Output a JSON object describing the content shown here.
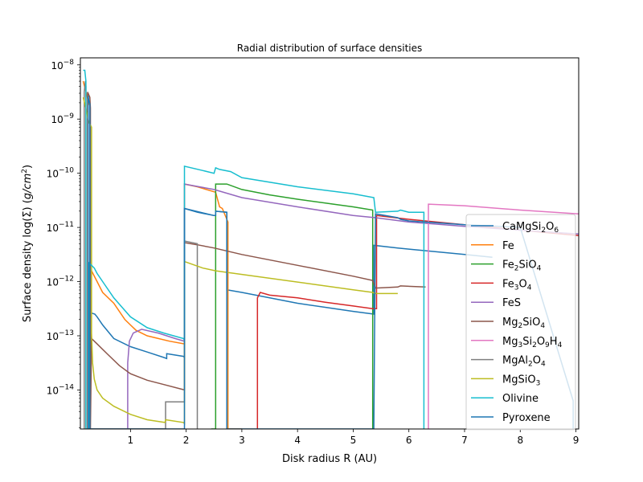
{
  "chart_data": {
    "type": "line",
    "title": "Radial distribution of surface densities",
    "xlabel": "Disk radius R (AU)",
    "ylabel_parts": [
      "Surface density log(Σ) (",
      "g",
      "/",
      "cm",
      "2",
      ")"
    ],
    "xlim": [
      0.1,
      9.05
    ],
    "ylim_log10": [
      -14.72,
      -7.87
    ],
    "yscale": "log",
    "grid": false,
    "legend_position": "lower right",
    "x_ticks": [
      1,
      2,
      3,
      4,
      5,
      6,
      7,
      8,
      9
    ],
    "x_tick_labels": [
      "1",
      "2",
      "3",
      "4",
      "5",
      "6",
      "7",
      "8",
      "9"
    ],
    "y_ticks_log10": [
      -14,
      -13,
      -12,
      -11,
      -10,
      -9,
      -8
    ],
    "y_tick_labels": [
      [
        "10",
        "−14"
      ],
      [
        "10",
        "−13"
      ],
      [
        "10",
        "−12"
      ],
      [
        "10",
        "−11"
      ],
      [
        "10",
        "−10"
      ],
      [
        "10",
        "−9"
      ],
      [
        "10",
        "−8"
      ]
    ],
    "series": [
      {
        "name": "CaMgSi2O6",
        "label": [
          "CaMgSi",
          "2",
          "O",
          "6"
        ],
        "color": "#1f77b4",
        "x": [
          0.25,
          0.25,
          0.3,
          0.36,
          0.4,
          0.5,
          0.7,
          1.0,
          1.3,
          1.6,
          1.65,
          1.65,
          1.95,
          1.97,
          1.97,
          2.5,
          2.53,
          2.53,
          2.73,
          2.73,
          3.0,
          4.0,
          5.0,
          5.37,
          5.37,
          5.8,
          6.0,
          7.0,
          7.5
        ],
        "y": [
          -14.72,
          -12.72,
          -12.58,
          -12.6,
          -12.65,
          -12.8,
          -13.05,
          -13.2,
          -13.3,
          -13.4,
          -13.42,
          -13.33,
          -13.38,
          -13.4,
          -10.65,
          -10.78,
          -10.78,
          -10.7,
          -10.72,
          -12.15,
          -12.2,
          -12.4,
          -12.55,
          -12.6,
          -11.33,
          -11.38,
          -11.4,
          -11.5,
          -11.55
        ]
      },
      {
        "name": "Fe",
        "label": [
          "Fe"
        ],
        "color": "#ff7f0e",
        "x": [
          0.15,
          0.2,
          0.25,
          0.27,
          0.27,
          0.3,
          0.4,
          0.5,
          0.7,
          0.9,
          1.0,
          1.1,
          1.3,
          1.5,
          1.7,
          1.97,
          1.97,
          2.2,
          2.53,
          2.6,
          2.65,
          2.75,
          2.75,
          3.0
        ],
        "y": [
          -8.3,
          -8.5,
          -8.7,
          -8.75,
          -14.72,
          -11.8,
          -12.0,
          -12.2,
          -12.4,
          -12.7,
          -12.8,
          -12.9,
          -13.0,
          -13.05,
          -13.1,
          -13.15,
          -10.2,
          -10.25,
          -10.35,
          -10.62,
          -10.65,
          -10.9,
          -14.72,
          -14.72
        ]
      },
      {
        "name": "Fe2SiO4",
        "label": [
          "Fe",
          "2",
          "SiO",
          "4"
        ],
        "color": "#2ca02c",
        "x": [
          2.45,
          2.53,
          2.53,
          2.73,
          3.0,
          3.5,
          4.0,
          4.5,
          5.0,
          5.35,
          5.35
        ],
        "y": [
          -14.72,
          -14.72,
          -10.2,
          -10.2,
          -10.3,
          -10.4,
          -10.48,
          -10.55,
          -10.62,
          -10.68,
          -14.72
        ]
      },
      {
        "name": "Fe3O4",
        "label": [
          "Fe",
          "3",
          "O",
          "4"
        ],
        "color": "#d62728",
        "x": [
          3.28,
          3.28,
          3.33,
          3.5,
          4.0,
          4.5,
          5.0,
          5.35,
          5.42,
          5.42,
          6.0,
          7.0,
          8.0,
          9.05
        ],
        "y": [
          -14.72,
          -12.3,
          -12.2,
          -12.25,
          -12.3,
          -12.38,
          -12.45,
          -12.5,
          -12.5,
          -10.78,
          -10.85,
          -10.95,
          -11.05,
          -11.15
        ]
      },
      {
        "name": "FeS",
        "label": [
          "FeS"
        ],
        "color": "#9467bd",
        "x": [
          0.95,
          0.95,
          0.98,
          1.05,
          1.2,
          1.5,
          1.8,
          1.97,
          1.97,
          2.5,
          3.0,
          4.0,
          5.0,
          5.4,
          6.0,
          7.0,
          8.0,
          9.05
        ],
        "y": [
          -14.72,
          -13.5,
          -13.1,
          -12.95,
          -12.88,
          -12.95,
          -13.05,
          -13.1,
          -10.2,
          -10.3,
          -10.45,
          -10.62,
          -10.78,
          -10.82,
          -10.9,
          -10.98,
          -11.05,
          -11.12
        ]
      },
      {
        "name": "Mg2SiO4",
        "label": [
          "Mg",
          "2",
          "SiO",
          "4"
        ],
        "color": "#8c564b",
        "x": [
          0.23,
          0.23,
          0.27,
          0.28,
          0.28,
          0.3,
          0.4,
          0.6,
          0.8,
          1.0,
          1.3,
          1.6,
          1.97,
          1.97,
          2.2,
          2.5,
          3.0,
          4.0,
          5.0,
          5.35,
          5.4,
          5.4,
          5.8,
          5.85,
          6.3
        ],
        "y": [
          -14.72,
          -8.5,
          -8.6,
          -8.8,
          -14.72,
          -13.05,
          -13.15,
          -13.35,
          -13.55,
          -13.7,
          -13.82,
          -13.9,
          -14.0,
          -11.28,
          -11.32,
          -11.38,
          -11.5,
          -11.7,
          -11.9,
          -11.98,
          -12.12,
          -12.12,
          -12.1,
          -12.08,
          -12.1
        ]
      },
      {
        "name": "Mg3Si2O9H4",
        "label": [
          "Mg",
          "3",
          "Si",
          "2",
          "O",
          "9",
          "H",
          "4"
        ],
        "color": "#e377c2",
        "x": [
          6.35,
          6.35,
          7.0,
          8.0,
          9.05
        ],
        "y": [
          -14.72,
          -10.57,
          -10.6,
          -10.68,
          -10.75
        ]
      },
      {
        "name": "MgAl2O4",
        "label": [
          "MgAl",
          "2",
          "O",
          "4"
        ],
        "color": "#7f7f7f",
        "x": [
          0.17,
          0.17,
          0.19,
          0.2,
          0.2,
          1.63,
          1.63,
          1.97,
          1.97,
          2.2,
          2.2
        ],
        "y": [
          -14.72,
          -8.5,
          -8.3,
          -8.4,
          -14.72,
          -14.72,
          -14.22,
          -14.22,
          -11.25,
          -11.3,
          -14.72
        ]
      },
      {
        "name": "MgSiO3",
        "label": [
          "MgSiO",
          "3"
        ],
        "color": "#bcbd22",
        "x": [
          0.15,
          0.2,
          0.25,
          0.3,
          0.3,
          0.32,
          0.35,
          0.4,
          0.5,
          0.7,
          1.0,
          1.3,
          1.62,
          1.63,
          1.95,
          1.97,
          1.97,
          2.3,
          2.53,
          2.53,
          5.0,
          5.35,
          5.4,
          5.8
        ],
        "y": [
          -8.6,
          -8.8,
          -9.05,
          -9.15,
          -12.95,
          -13.5,
          -13.8,
          -14.0,
          -14.15,
          -14.3,
          -14.45,
          -14.55,
          -14.6,
          -14.55,
          -14.6,
          -14.62,
          -11.63,
          -11.75,
          -11.8,
          -11.8,
          -12.15,
          -12.2,
          -12.22,
          -12.22
        ]
      },
      {
        "name": "Olivine",
        "label": [
          "Olivine"
        ],
        "color": "#17becf",
        "x": [
          0.15,
          0.18,
          0.2,
          0.2,
          0.25,
          0.25,
          0.3,
          0.35,
          0.4,
          0.5,
          0.7,
          1.0,
          1.3,
          1.6,
          1.95,
          1.97,
          1.97,
          2.3,
          2.5,
          2.53,
          2.6,
          2.8,
          3.0,
          4.0,
          5.0,
          5.37,
          5.4,
          5.4,
          5.8,
          5.85,
          6.0,
          6.27,
          6.27
        ],
        "y": [
          -8.1,
          -8.1,
          -8.3,
          -14.72,
          -14.72,
          -11.65,
          -11.7,
          -11.75,
          -11.85,
          -12.0,
          -12.3,
          -12.65,
          -12.85,
          -12.95,
          -13.05,
          -13.08,
          -9.87,
          -9.95,
          -10.0,
          -9.9,
          -9.93,
          -9.97,
          -10.08,
          -10.25,
          -10.38,
          -10.45,
          -10.72,
          -10.72,
          -10.7,
          -10.68,
          -10.72,
          -10.72,
          -14.72
        ]
      },
      {
        "name": "Pyroxene",
        "label": [
          "Pyroxene"
        ],
        "color": "#1f77b4",
        "x": [
          0.24,
          0.24,
          0.25,
          0.27,
          0.27,
          0.3,
          0.4,
          0.6,
          1.0,
          1.5,
          1.97,
          1.97,
          2.2,
          2.5,
          2.53,
          2.53,
          2.73,
          2.73,
          3.0,
          4.0,
          5.0,
          5.37,
          5.4,
          5.8,
          5.85,
          6.0,
          7.0,
          8.0,
          8.95,
          8.95
        ],
        "y": [
          -14.72,
          -8.57,
          -8.65,
          -8.72,
          -14.72,
          -14.72,
          -14.72,
          -14.72,
          -14.72,
          -14.72,
          -14.72,
          -10.65,
          -10.72,
          -10.78,
          -10.78,
          -10.7,
          -10.72,
          -14.72,
          -14.72,
          -14.72,
          -14.72,
          -14.72,
          -10.75,
          -10.82,
          -10.85,
          -10.88,
          -10.95,
          -11.0,
          -14.2,
          -14.72
        ]
      }
    ]
  }
}
